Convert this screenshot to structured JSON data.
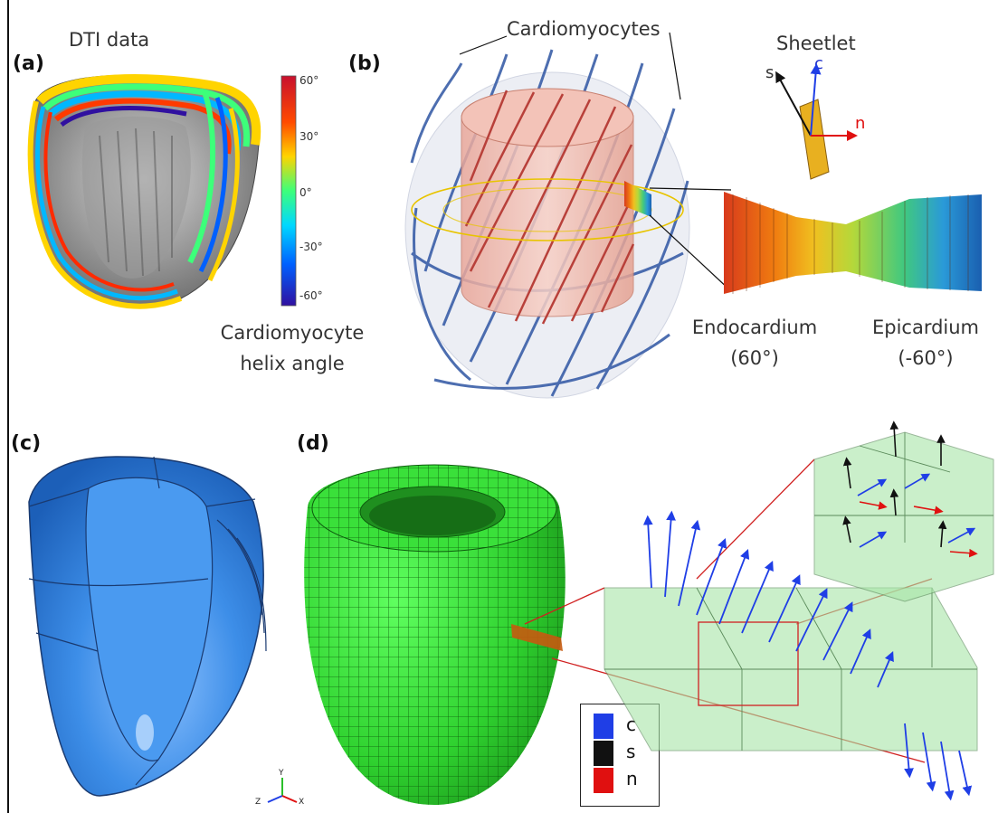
{
  "panels": {
    "a": {
      "label": "(a)",
      "title": "DTI data",
      "caption_line1": "Cardiomyocyte",
      "caption_line2": "helix angle",
      "colorbar_ticks": [
        "60°",
        "30°",
        "0°",
        "-30°",
        "-60°"
      ]
    },
    "b": {
      "label": "(b)",
      "cardiomyocytes": "Cardiomyocytes",
      "sheetlet": "Sheetlet",
      "axis_s": "s",
      "axis_c": "c",
      "axis_n": "n",
      "endo_line1": "Endocardium",
      "endo_line2": "(60°)",
      "epi_line1": "Epicardium",
      "epi_line2": "(-60°)"
    },
    "c": {
      "label": "(c)",
      "axis_y": "Y",
      "axis_z": "Z",
      "axis_x": "X"
    },
    "d": {
      "label": "(d)",
      "legend": [
        "c",
        "s",
        "n"
      ]
    }
  },
  "colors": {
    "legend_c": "#1f3ee6",
    "legend_s": "#111111",
    "legend_n": "#e01010",
    "mesh_green": "#2fd12f",
    "solid_blue": "#3d8ee8",
    "fiber_blue": "#3a5fa8",
    "fiber_red": "#b8403a"
  }
}
